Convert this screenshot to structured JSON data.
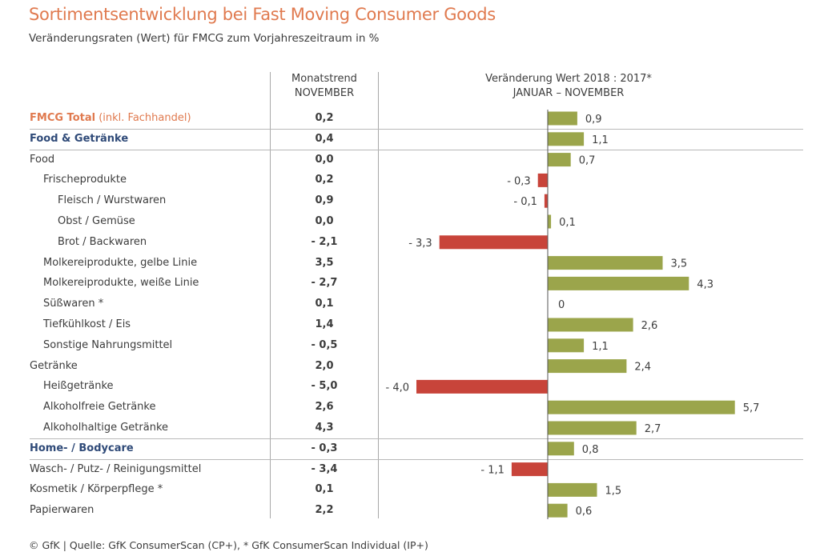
{
  "header": {
    "title": "Sortimentsentwicklung bei Fast Moving Consumer Goods",
    "subtitle": "Veränderungsraten (Wert) für FMCG zum Vorjahreszeitraum in %"
  },
  "columns": {
    "month_line1": "Monatstrend",
    "month_line2": "NOVEMBER",
    "change_line1": "Veränderung Wert 2018 : 2017*",
    "change_line2": "JANUAR – NOVEMBER"
  },
  "colors": {
    "title": "#e07a4f",
    "section": "#2f4a78",
    "positive": "#9ba54b",
    "negative": "#c8443a"
  },
  "footer": "© GfK | Quelle: GfK ConsumerScan (CP+), * GfK ConsumerScan Individual (IP+)",
  "chart_data": {
    "type": "bar",
    "orientation": "horizontal",
    "title": "Sortimentsentwicklung bei Fast Moving Consumer Goods",
    "subtitle": "Veränderungsraten (Wert) für FMCG zum Vorjahreszeitraum in %",
    "xlabel": "Veränderung Wert 2018 : 2017* JANUAR – NOVEMBER",
    "xlim": [
      -5.0,
      7.5
    ],
    "grid": false,
    "categories": [
      "FMCG Total (inkl. Fachhandel)",
      "Food & Getränke",
      "Food",
      "Frischeprodukte",
      "Fleisch / Wurstwaren",
      "Obst / Gemüse",
      "Brot / Backwaren",
      "Molkereiprodukte, gelbe Linie",
      "Molkereiprodukte, weiße Linie",
      "Süßwaren *",
      "Tiefkühlkost / Eis",
      "Sonstige Nahrungsmittel",
      "Getränke",
      "Heißgetränke",
      "Alkoholfreie Getränke",
      "Alkoholhaltige Getränke",
      "Home- / Bodycare",
      "Wasch- / Putz- / Reinigungsmittel",
      "Kosmetik / Körperpflege *",
      "Papierwaren"
    ],
    "series": [
      {
        "name": "Monatstrend NOVEMBER",
        "values": [
          0.2,
          0.4,
          0.0,
          0.2,
          0.9,
          0.0,
          -2.1,
          3.5,
          -2.7,
          0.1,
          1.4,
          -0.5,
          2.0,
          -5.0,
          2.6,
          4.3,
          -0.3,
          -3.4,
          0.1,
          2.2
        ],
        "display": [
          "0,2",
          "0,4",
          "0,0",
          "0,2",
          "0,9",
          "0,0",
          "- 2,1",
          "3,5",
          "- 2,7",
          "0,1",
          "1,4",
          "- 0,5",
          "2,0",
          "- 5,0",
          "2,6",
          "4,3",
          "- 0,3",
          "- 3,4",
          "0,1",
          "2,2"
        ]
      },
      {
        "name": "Veränderung Wert 2018 : 2017* JANUAR – NOVEMBER",
        "values": [
          0.9,
          1.1,
          0.7,
          -0.3,
          -0.1,
          0.1,
          -3.3,
          3.5,
          4.3,
          0,
          2.6,
          1.1,
          2.4,
          -4.0,
          5.7,
          2.7,
          0.8,
          -1.1,
          1.5,
          0.6
        ],
        "display": [
          "0,9",
          "1,1",
          "0,7",
          "- 0,3",
          "- 0,1",
          "0,1",
          "- 3,3",
          "3,5",
          "4,3",
          "0",
          "2,6",
          "1,1",
          "2,4",
          "- 4,0",
          "5,7",
          "2,7",
          "0,8",
          "- 1,1",
          "1,5",
          "0,6"
        ]
      }
    ],
    "rows": [
      {
        "label": "FMCG Total",
        "suffix": " (inkl. Fachhandel)",
        "style": "total",
        "indent": 0
      },
      {
        "label": "Food & Getränke",
        "suffix": "",
        "style": "section",
        "indent": 0
      },
      {
        "label": "Food",
        "suffix": "",
        "style": "normal",
        "indent": 0
      },
      {
        "label": "Frischeprodukte",
        "suffix": "",
        "style": "normal",
        "indent": 1
      },
      {
        "label": "Fleisch / Wurstwaren",
        "suffix": "",
        "style": "normal",
        "indent": 2
      },
      {
        "label": "Obst / Gemüse",
        "suffix": "",
        "style": "normal",
        "indent": 2
      },
      {
        "label": "Brot / Backwaren",
        "suffix": "",
        "style": "normal",
        "indent": 2
      },
      {
        "label": "Molkereiprodukte, gelbe Linie",
        "suffix": "",
        "style": "normal",
        "indent": 1
      },
      {
        "label": "Molkereiprodukte, weiße Linie",
        "suffix": "",
        "style": "normal",
        "indent": 1
      },
      {
        "label": "Süßwaren *",
        "suffix": "",
        "style": "normal",
        "indent": 1
      },
      {
        "label": "Tiefkühlkost / Eis",
        "suffix": "",
        "style": "normal",
        "indent": 1
      },
      {
        "label": "Sonstige Nahrungsmittel",
        "suffix": "",
        "style": "normal",
        "indent": 1
      },
      {
        "label": "Getränke",
        "suffix": "",
        "style": "normal",
        "indent": 0
      },
      {
        "label": "Heißgetränke",
        "suffix": "",
        "style": "normal",
        "indent": 1
      },
      {
        "label": "Alkoholfreie Getränke",
        "suffix": "",
        "style": "normal",
        "indent": 1
      },
      {
        "label": "Alkoholhaltige Getränke",
        "suffix": "",
        "style": "normal",
        "indent": 1
      },
      {
        "label": "Home- / Bodycare",
        "suffix": "",
        "style": "section",
        "indent": 0
      },
      {
        "label": "Wasch- / Putz- / Reinigungsmittel",
        "suffix": "",
        "style": "normal",
        "indent": 0
      },
      {
        "label": "Kosmetik / Körperpflege *",
        "suffix": "",
        "style": "normal",
        "indent": 0
      },
      {
        "label": "Papierwaren",
        "suffix": "",
        "style": "normal",
        "indent": 0
      }
    ],
    "separators_after_rows": [
      0,
      1,
      15,
      16
    ]
  }
}
